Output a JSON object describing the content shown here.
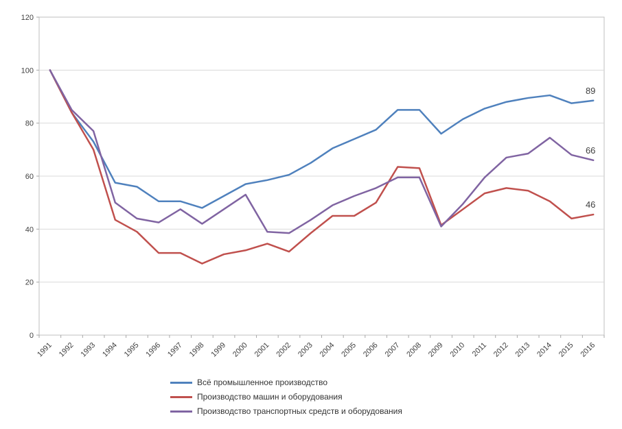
{
  "chart_data": {
    "type": "line",
    "title": "",
    "xlabel": "",
    "ylabel": "",
    "x_categories": [
      "1991",
      "1992",
      "1993",
      "1994",
      "1995",
      "1996",
      "1997",
      "1998",
      "1999",
      "2000",
      "2001",
      "2002",
      "2003",
      "2004",
      "2005",
      "2006",
      "2007",
      "2008",
      "2009",
      "2010",
      "2011",
      "2012",
      "2013",
      "2014",
      "2015",
      "2016"
    ],
    "ylim": [
      0,
      120
    ],
    "ytick_step": 20,
    "ytick_labels": [
      "0",
      "20",
      "40",
      "60",
      "80",
      "100",
      "120"
    ],
    "grid": "horizontal",
    "legend_position": "bottom",
    "series": [
      {
        "name": "Всё промышленное производство",
        "color": "#4F81BD",
        "end_label": "89",
        "values": [
          100,
          84,
          73,
          57.5,
          56,
          50.5,
          50.5,
          48,
          52.5,
          57,
          58.5,
          60.5,
          65,
          70.5,
          74,
          77.5,
          85,
          85,
          76,
          81.5,
          85.5,
          88,
          89.5,
          90.5,
          87.5,
          88.5
        ]
      },
      {
        "name": "Производство машин и оборудования",
        "color": "#C0504D",
        "end_label": "46",
        "values": [
          100,
          84,
          70,
          43.5,
          39,
          31,
          31,
          27,
          30.5,
          32,
          34.5,
          31.5,
          38.5,
          45,
          45,
          50,
          63.5,
          63,
          41.5,
          47.5,
          53.5,
          55.5,
          54.5,
          50.5,
          44,
          45.5
        ]
      },
      {
        "name": "Производство транспортных средств и оборудования",
        "color": "#8064A2",
        "end_label": "66",
        "values": [
          100,
          85,
          77,
          50,
          44,
          42.5,
          47.5,
          42,
          47.5,
          53,
          39,
          38.5,
          43.5,
          49,
          52.5,
          55.5,
          59.5,
          59.5,
          41,
          49.5,
          59.5,
          67,
          68.5,
          74.5,
          68,
          66
        ]
      }
    ]
  },
  "colors": {
    "background": "#FFFFFF",
    "plot_border": "#BFBFBF",
    "gridline": "#D9D9D9",
    "axis": "#A6A6A6",
    "text": "#404040"
  }
}
